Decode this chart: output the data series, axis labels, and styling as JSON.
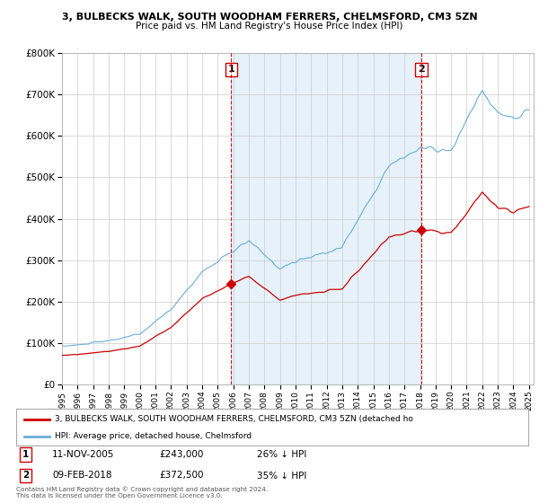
{
  "title1": "3, BULBECKS WALK, SOUTH WOODHAM FERRERS, CHELMSFORD, CM3 5ZN",
  "title2": "Price paid vs. HM Land Registry's House Price Index (HPI)",
  "sale1_date": "11-NOV-2005",
  "sale1_price": 243000,
  "sale1_label": "26% ↓ HPI",
  "sale2_date": "09-FEB-2018",
  "sale2_price": 372500,
  "sale2_label": "35% ↓ HPI",
  "legend_property": "3, BULBECKS WALK, SOUTH WOODHAM FERRERS, CHELMSFORD, CM3 5ZN (detached ho",
  "legend_hpi": "HPI: Average price, detached house, Chelmsford",
  "footer": "Contains HM Land Registry data © Crown copyright and database right 2024.\nThis data is licensed under the Open Government Licence v3.0.",
  "hpi_color": "#6aaed6",
  "hpi_fill_color": "#d6e9f8",
  "property_color": "#cc0000",
  "annotation_box_color": "#cc0000",
  "background_color": "#ffffff",
  "ylim_max": 800000,
  "ylim_min": 0,
  "sale1_x": 2005.875,
  "sale2_x": 2018.083
}
